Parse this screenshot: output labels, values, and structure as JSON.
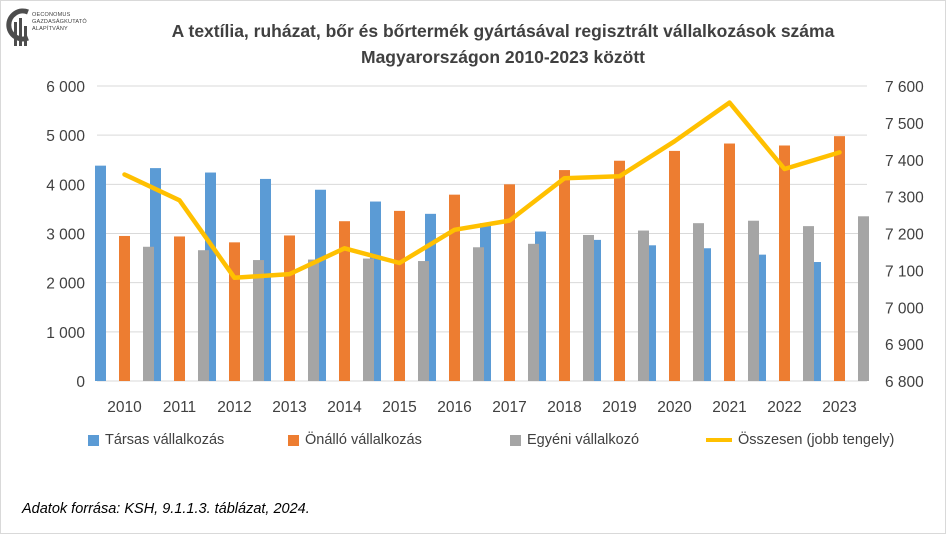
{
  "logo": {
    "lines": [
      "OECONOMUS",
      "GAZDASÁGKUTATÓ",
      "ALAPÍTVÁNY"
    ]
  },
  "chart_data": {
    "type": "bar",
    "title": "A textília, ruházat, bőr és bőrtermék gyártásával regisztrált vállalkozások száma",
    "subtitle": "Magyarországon 2010-2023 között",
    "categories": [
      "2010",
      "2011",
      "2012",
      "2013",
      "2014",
      "2015",
      "2016",
      "2017",
      "2018",
      "2019",
      "2020",
      "2021",
      "2022",
      "2023"
    ],
    "series": [
      {
        "name": "Társas vállalkozás",
        "type": "bar",
        "axis": "left",
        "color": "#5b9bd5",
        "values": [
          4380,
          4330,
          4240,
          4110,
          3890,
          3650,
          3400,
          3210,
          3040,
          2870,
          2760,
          2700,
          2570,
          2420
        ]
      },
      {
        "name": "Önálló vállalkozás",
        "type": "bar",
        "axis": "left",
        "color": "#ed7d31",
        "values": [
          2950,
          2940,
          2820,
          2960,
          3250,
          3460,
          3790,
          4000,
          4290,
          4480,
          4680,
          4830,
          4790,
          4980
        ]
      },
      {
        "name": "Egyéni vállalkozó",
        "type": "bar",
        "axis": "left",
        "color": "#a5a5a5",
        "values": [
          2730,
          2660,
          2460,
          2470,
          2490,
          2440,
          2720,
          2790,
          2970,
          3060,
          3210,
          3260,
          3150,
          3350
        ]
      },
      {
        "name": "Összesen (jobb tengely)",
        "type": "line",
        "axis": "right",
        "color": "#ffc000",
        "values": [
          7360,
          7290,
          7080,
          7090,
          7160,
          7120,
          7210,
          7235,
          7350,
          7355,
          7450,
          7555,
          7375,
          7420
        ]
      }
    ],
    "left_axis": {
      "min": 0,
      "max": 6000,
      "step": 1000,
      "tick_labels": [
        "0",
        "1 000",
        "2 000",
        "3 000",
        "4 000",
        "5 000",
        "6 000"
      ]
    },
    "right_axis": {
      "min": 6800,
      "max": 7600,
      "step": 100,
      "tick_labels": [
        "6 800",
        "6 900",
        "7 000",
        "7 100",
        "7 200",
        "7 300",
        "7 400",
        "7 500",
        "7 600"
      ]
    },
    "grid": true,
    "legend_position": "bottom"
  },
  "source_note": "Adatok forrása: KSH, 9.1.1.3. táblázat, 2024."
}
